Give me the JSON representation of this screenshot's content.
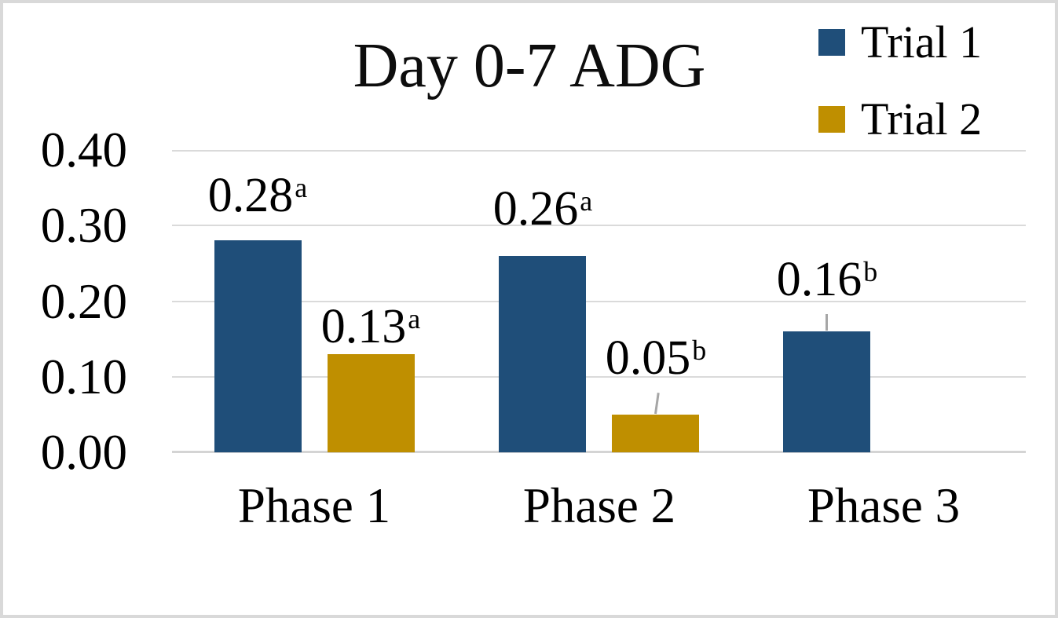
{
  "chart_data": {
    "type": "bar",
    "title": "Day 0-7 ADG",
    "categories": [
      "Phase 1",
      "Phase 2",
      "Phase 3"
    ],
    "series": [
      {
        "name": "Trial 1",
        "color": "#1F4E79",
        "values": [
          0.28,
          0.26,
          0.16
        ],
        "data_labels": [
          {
            "text": "0.28",
            "sup": "a",
            "leader_line": false,
            "dy": -4,
            "leader_tilt": 0
          },
          {
            "text": "0.26",
            "sup": "a",
            "leader_line": false,
            "dy": -1,
            "leader_tilt": 0
          },
          {
            "text": "0.16",
            "sup": "b",
            "leader_line": true,
            "dy": 5,
            "leader_tilt": 0
          }
        ]
      },
      {
        "name": "Trial 2",
        "color": "#BF8F00",
        "values": [
          0.13,
          0.05,
          null
        ],
        "data_labels": [
          {
            "text": "0.13",
            "sup": "a",
            "leader_line": false,
            "dy": -26,
            "leader_tilt": 0
          },
          {
            "text": "0.05",
            "sup": "b",
            "leader_line": true,
            "dy": 11,
            "leader_tilt": 8
          },
          null
        ]
      }
    ],
    "ylim": [
      0,
      0.4
    ],
    "yticks": [
      0.0,
      0.1,
      0.2,
      0.3,
      0.4
    ],
    "ytick_labels": [
      "0.00",
      "0.10",
      "0.20",
      "0.30",
      "0.40"
    ],
    "xlabel": "",
    "ylabel": "",
    "grid": true,
    "gridline_color": "#DADADA",
    "baseline_color": "#D4D4D4",
    "leader_line_color": "#A6A6A6",
    "background_color": "#FFFFFF",
    "border_color": "#D9D9D9",
    "legend_position": "top-right"
  }
}
